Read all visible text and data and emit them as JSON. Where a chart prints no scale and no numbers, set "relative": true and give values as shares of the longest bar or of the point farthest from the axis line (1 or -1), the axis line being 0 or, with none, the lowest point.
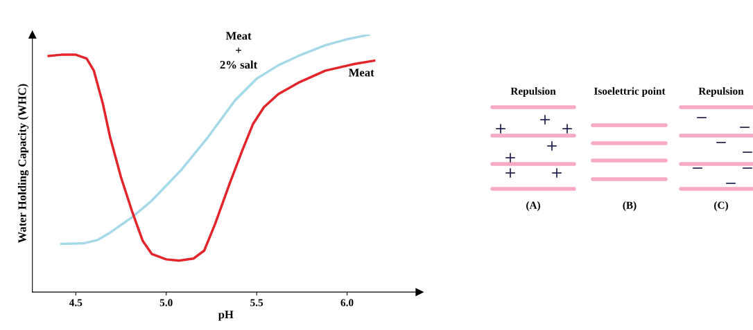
{
  "chart_data": [
    {
      "type": "line",
      "relative": true,
      "xlabel": "pH",
      "ylabel": "Water Holding Capacity (WHC)",
      "xlim": [
        4.26,
        6.4
      ],
      "xticks": [
        {
          "value": 4.5,
          "label": "4.5"
        },
        {
          "value": 5.0,
          "label": "5.0"
        },
        {
          "value": 5.5,
          "label": "5.5"
        },
        {
          "value": 6.0,
          "label": "6.0"
        }
      ],
      "tick_labels": "x",
      "grid": false,
      "legend": false,
      "marker": "none",
      "line_style": "solid",
      "series": [
        {
          "name": "Meat\n+\n2% salt",
          "color": "#a6d9e8",
          "x": [
            4.42,
            4.54,
            4.62,
            4.69,
            4.81,
            4.92,
            5.08,
            5.23,
            5.38,
            5.5,
            5.62,
            5.73,
            5.88,
            6.0,
            6.12
          ],
          "values": [
            0.187,
            0.189,
            0.202,
            0.231,
            0.29,
            0.355,
            0.472,
            0.601,
            0.744,
            0.829,
            0.881,
            0.917,
            0.959,
            0.982,
            1.0
          ]
        },
        {
          "name": "Meat",
          "color": "#e3242b",
          "x": [
            4.35,
            4.42,
            4.5,
            4.56,
            4.6,
            4.65,
            4.69,
            4.75,
            4.81,
            4.87,
            4.92,
            5.0,
            5.07,
            5.15,
            5.21,
            5.27,
            5.35,
            5.42,
            5.48,
            5.54,
            5.62,
            5.73,
            5.88,
            6.04,
            6.15
          ],
          "values": [
            0.917,
            0.922,
            0.922,
            0.907,
            0.86,
            0.731,
            0.601,
            0.446,
            0.316,
            0.199,
            0.148,
            0.127,
            0.122,
            0.13,
            0.161,
            0.264,
            0.42,
            0.549,
            0.653,
            0.718,
            0.769,
            0.813,
            0.86,
            0.886,
            0.899
          ]
        }
      ]
    },
    {
      "type": "other",
      "annotations": [
        "Repulsion",
        "Isoelettric point",
        "Repulsion",
        "(A)",
        "(B)",
        "(C)"
      ]
    }
  ]
}
